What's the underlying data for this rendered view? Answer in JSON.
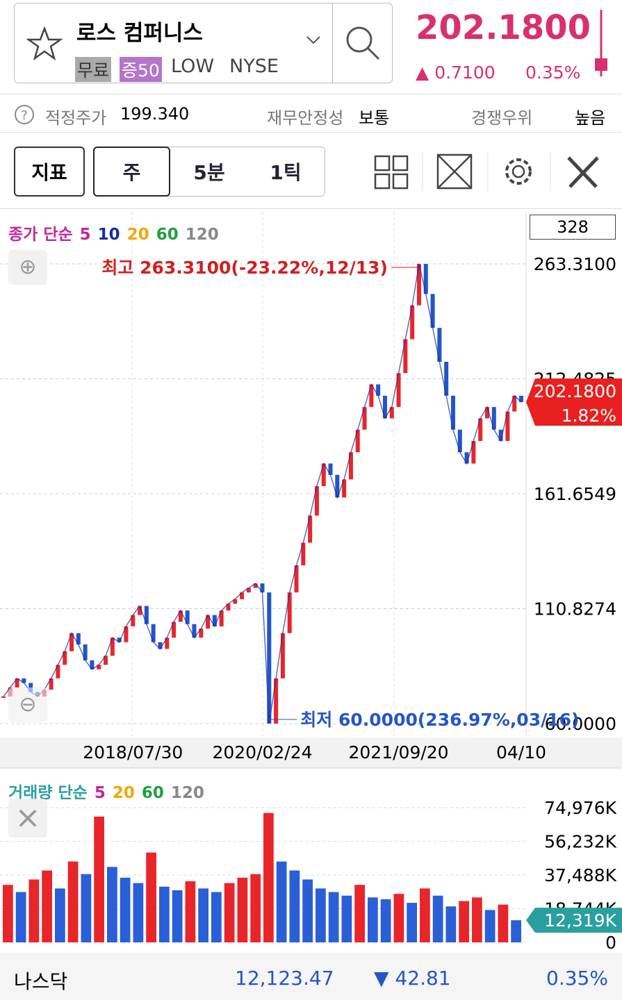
{
  "header": {
    "title": "로스 컴퍼니스",
    "tags": [
      "무료",
      "증50",
      "LOW",
      "NYSE"
    ]
  },
  "quote": {
    "price": "202.1800",
    "change": "0.7100",
    "change_pct": "0.35%"
  },
  "info": {
    "fair_label": "적정주가",
    "fair_value": "199.340",
    "stability_label": "재무안정성",
    "stability_value": "보통",
    "moat_label": "경쟁우위",
    "moat_value": "높음"
  },
  "toolbar": {
    "indicator": "지표",
    "periods": [
      "주",
      "5분",
      "1틱"
    ]
  },
  "chart_data": [
    {
      "type": "candlestick",
      "legend": {
        "title": "종가 단순",
        "periods": [
          5,
          10,
          20,
          60,
          120
        ],
        "colors": [
          "#c0289c",
          "#1a2aa8",
          "#f0a800",
          "#20a040",
          "#888888"
        ]
      },
      "count_box": "328",
      "up_color": "#e8262a",
      "down_color": "#2255c8",
      "categories": [
        null,
        null,
        null,
        null,
        null,
        null,
        null,
        null,
        null,
        null,
        null,
        null,
        null,
        null,
        null,
        null,
        null,
        null,
        null,
        "2018/07/30",
        null,
        null,
        null,
        null,
        null,
        null,
        null,
        null,
        null,
        null,
        null,
        null,
        null,
        null,
        null,
        null,
        null,
        null,
        "2020/02/24",
        null,
        null,
        null,
        null,
        null,
        null,
        null,
        null,
        null,
        null,
        null,
        null,
        null,
        null,
        null,
        null,
        null,
        null,
        null,
        "2021/09/20",
        null,
        null,
        null,
        null,
        null,
        null,
        null,
        null,
        null,
        null,
        null,
        null,
        null,
        null,
        null,
        null,
        null,
        "04/10"
      ],
      "values": [
        72,
        76,
        80,
        78,
        74,
        72,
        75,
        80,
        86,
        92,
        100,
        95,
        88,
        84,
        86,
        90,
        98,
        96,
        103,
        108,
        112,
        104,
        96,
        93,
        98,
        105,
        110,
        104,
        98,
        102,
        108,
        103,
        110,
        113,
        115,
        118,
        120,
        122,
        118,
        60,
        80,
        100,
        118,
        130,
        140,
        152,
        165,
        175,
        170,
        160,
        168,
        180,
        190,
        200,
        210,
        205,
        195,
        200,
        215,
        230,
        245,
        263.31,
        250,
        235,
        220,
        205,
        190,
        180,
        175,
        185,
        195,
        200,
        190,
        185,
        198,
        205,
        202.18
      ],
      "ylim": [
        56,
        284.8
      ],
      "yticks": [
        {
          "value": 60,
          "label": "60.0000"
        },
        {
          "value": 110.8274,
          "label": "110.8274"
        },
        {
          "value": 161.6549,
          "label": "161.6549"
        },
        {
          "value": 212.4825,
          "label": "212.4825"
        },
        {
          "value": 263.31,
          "label": "263.3100"
        }
      ],
      "max_label": "최고 263.3100(-23.22%,12/13)",
      "min_label": "최저 60.0000(236.97%,03/16)",
      "current_label": "202.1800",
      "current_pct": "1.82%"
    },
    {
      "type": "bar",
      "legend": {
        "title": "거래량 단순",
        "periods": [
          5,
          20,
          60,
          120
        ],
        "colors": [
          "#c0289c",
          "#f0a800",
          "#20a040",
          "#888888"
        ]
      },
      "values": [
        32000,
        28000,
        35000,
        40000,
        30000,
        45000,
        38000,
        70000,
        42000,
        36000,
        33000,
        50000,
        31000,
        29000,
        34000,
        30000,
        28000,
        33000,
        36000,
        38000,
        72000,
        45000,
        40000,
        35000,
        30000,
        28000,
        26000,
        32000,
        25000,
        24000,
        27000,
        22000,
        30000,
        26000,
        20000,
        23000,
        25000,
        18000,
        21000,
        12319
      ],
      "ylim": [
        0,
        80000
      ],
      "yticks": [
        {
          "value": 0,
          "label": "0"
        },
        {
          "value": 18744,
          "label": "18,744K"
        },
        {
          "value": 37488,
          "label": "37,488K"
        },
        {
          "value": 56232,
          "label": "56,232K"
        },
        {
          "value": 74976,
          "label": "74,976K"
        }
      ],
      "current_label": "12,319K"
    }
  ],
  "footer": {
    "name": "나스닥",
    "value": "12,123.47",
    "change": "42.81",
    "change_pct": "0.35%"
  }
}
